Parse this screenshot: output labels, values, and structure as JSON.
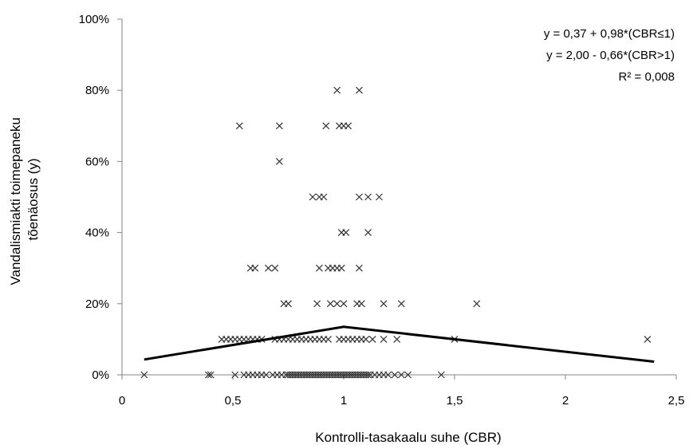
{
  "chart_data": {
    "type": "scatter",
    "xlabel": "Kontrolli-tasakaalu suhe (CBR)",
    "ylabel_lines": [
      "Vandalismiakti toimepaneku",
      "tõenäosus (y)"
    ],
    "xlim": [
      0,
      2.5
    ],
    "ylim": [
      0,
      1
    ],
    "x_ticks": [
      {
        "v": 0,
        "label": "0"
      },
      {
        "v": 0.5,
        "label": "0,5"
      },
      {
        "v": 1,
        "label": "1"
      },
      {
        "v": 1.5,
        "label": "1,5"
      },
      {
        "v": 2,
        "label": "2"
      },
      {
        "v": 2.5,
        "label": "2,5"
      }
    ],
    "y_ticks": [
      {
        "v": 0,
        "label": "0%"
      },
      {
        "v": 0.2,
        "label": "20%"
      },
      {
        "v": 0.4,
        "label": "40%"
      },
      {
        "v": 0.6,
        "label": "60%"
      },
      {
        "v": 0.8,
        "label": "80%"
      },
      {
        "v": 1.0,
        "label": "100%"
      }
    ],
    "grid": false,
    "marker": "x",
    "annotations": [
      "y = 0,37 + 0,98*(CBR≤1)",
      "y = 2,00 - 0,66*(CBR>1)",
      "R² = 0,008"
    ],
    "fit_line": {
      "points": [
        {
          "x": 0.1,
          "y": 0.043
        },
        {
          "x": 1.0,
          "y": 0.135
        },
        {
          "x": 2.4,
          "y": 0.037
        }
      ]
    },
    "series": [
      {
        "points": [
          {
            "x": 0.1,
            "y": 0.0
          },
          {
            "x": 0.39,
            "y": 0.0
          },
          {
            "x": 0.4,
            "y": 0.0
          },
          {
            "x": 0.51,
            "y": 0.0
          },
          {
            "x": 0.55,
            "y": 0.0
          },
          {
            "x": 0.57,
            "y": 0.0
          },
          {
            "x": 0.59,
            "y": 0.0
          },
          {
            "x": 0.61,
            "y": 0.0
          },
          {
            "x": 0.63,
            "y": 0.0
          },
          {
            "x": 0.65,
            "y": 0.0
          },
          {
            "x": 0.68,
            "y": 0.0
          },
          {
            "x": 0.7,
            "y": 0.0
          },
          {
            "x": 0.72,
            "y": 0.0
          },
          {
            "x": 0.74,
            "y": 0.0
          },
          {
            "x": 0.75,
            "y": 0.0
          },
          {
            "x": 0.76,
            "y": 0.0
          },
          {
            "x": 0.77,
            "y": 0.0
          },
          {
            "x": 0.78,
            "y": 0.0
          },
          {
            "x": 0.79,
            "y": 0.0
          },
          {
            "x": 0.8,
            "y": 0.0
          },
          {
            "x": 0.81,
            "y": 0.0
          },
          {
            "x": 0.82,
            "y": 0.0
          },
          {
            "x": 0.83,
            "y": 0.0
          },
          {
            "x": 0.84,
            "y": 0.0
          },
          {
            "x": 0.85,
            "y": 0.0
          },
          {
            "x": 0.86,
            "y": 0.0
          },
          {
            "x": 0.87,
            "y": 0.0
          },
          {
            "x": 0.88,
            "y": 0.0
          },
          {
            "x": 0.89,
            "y": 0.0
          },
          {
            "x": 0.9,
            "y": 0.0
          },
          {
            "x": 0.91,
            "y": 0.0
          },
          {
            "x": 0.92,
            "y": 0.0
          },
          {
            "x": 0.93,
            "y": 0.0
          },
          {
            "x": 0.94,
            "y": 0.0
          },
          {
            "x": 0.95,
            "y": 0.0
          },
          {
            "x": 0.96,
            "y": 0.0
          },
          {
            "x": 0.97,
            "y": 0.0
          },
          {
            "x": 0.98,
            "y": 0.0
          },
          {
            "x": 0.99,
            "y": 0.0
          },
          {
            "x": 1.0,
            "y": 0.0
          },
          {
            "x": 1.01,
            "y": 0.0
          },
          {
            "x": 1.02,
            "y": 0.0
          },
          {
            "x": 1.03,
            "y": 0.0
          },
          {
            "x": 1.04,
            "y": 0.0
          },
          {
            "x": 1.05,
            "y": 0.0
          },
          {
            "x": 1.06,
            "y": 0.0
          },
          {
            "x": 1.07,
            "y": 0.0
          },
          {
            "x": 1.08,
            "y": 0.0
          },
          {
            "x": 1.09,
            "y": 0.0
          },
          {
            "x": 1.1,
            "y": 0.0
          },
          {
            "x": 1.11,
            "y": 0.0
          },
          {
            "x": 1.12,
            "y": 0.0
          },
          {
            "x": 1.14,
            "y": 0.0
          },
          {
            "x": 1.16,
            "y": 0.0
          },
          {
            "x": 1.18,
            "y": 0.0
          },
          {
            "x": 1.2,
            "y": 0.0
          },
          {
            "x": 1.23,
            "y": 0.0
          },
          {
            "x": 1.26,
            "y": 0.0
          },
          {
            "x": 1.29,
            "y": 0.0
          },
          {
            "x": 1.44,
            "y": 0.0
          },
          {
            "x": 0.45,
            "y": 0.1
          },
          {
            "x": 0.47,
            "y": 0.1
          },
          {
            "x": 0.49,
            "y": 0.1
          },
          {
            "x": 0.51,
            "y": 0.1
          },
          {
            "x": 0.53,
            "y": 0.1
          },
          {
            "x": 0.55,
            "y": 0.1
          },
          {
            "x": 0.57,
            "y": 0.1
          },
          {
            "x": 0.59,
            "y": 0.1
          },
          {
            "x": 0.61,
            "y": 0.1
          },
          {
            "x": 0.63,
            "y": 0.1
          },
          {
            "x": 0.69,
            "y": 0.1
          },
          {
            "x": 0.71,
            "y": 0.1
          },
          {
            "x": 0.73,
            "y": 0.1
          },
          {
            "x": 0.75,
            "y": 0.1
          },
          {
            "x": 0.77,
            "y": 0.1
          },
          {
            "x": 0.79,
            "y": 0.1
          },
          {
            "x": 0.81,
            "y": 0.1
          },
          {
            "x": 0.83,
            "y": 0.1
          },
          {
            "x": 0.85,
            "y": 0.1
          },
          {
            "x": 0.87,
            "y": 0.1
          },
          {
            "x": 0.89,
            "y": 0.1
          },
          {
            "x": 0.91,
            "y": 0.1
          },
          {
            "x": 0.93,
            "y": 0.1
          },
          {
            "x": 0.98,
            "y": 0.1
          },
          {
            "x": 1.0,
            "y": 0.1
          },
          {
            "x": 1.02,
            "y": 0.1
          },
          {
            "x": 1.04,
            "y": 0.1
          },
          {
            "x": 1.06,
            "y": 0.1
          },
          {
            "x": 1.08,
            "y": 0.1
          },
          {
            "x": 1.1,
            "y": 0.1
          },
          {
            "x": 1.13,
            "y": 0.1
          },
          {
            "x": 1.18,
            "y": 0.1
          },
          {
            "x": 1.24,
            "y": 0.1
          },
          {
            "x": 1.5,
            "y": 0.1
          },
          {
            "x": 2.37,
            "y": 0.1
          },
          {
            "x": 0.73,
            "y": 0.2
          },
          {
            "x": 0.75,
            "y": 0.2
          },
          {
            "x": 0.88,
            "y": 0.2
          },
          {
            "x": 0.94,
            "y": 0.2
          },
          {
            "x": 0.97,
            "y": 0.2
          },
          {
            "x": 1.0,
            "y": 0.2
          },
          {
            "x": 1.06,
            "y": 0.2
          },
          {
            "x": 1.08,
            "y": 0.2
          },
          {
            "x": 1.18,
            "y": 0.2
          },
          {
            "x": 1.26,
            "y": 0.2
          },
          {
            "x": 1.6,
            "y": 0.2
          },
          {
            "x": 0.58,
            "y": 0.3
          },
          {
            "x": 0.6,
            "y": 0.3
          },
          {
            "x": 0.66,
            "y": 0.3
          },
          {
            "x": 0.69,
            "y": 0.3
          },
          {
            "x": 0.89,
            "y": 0.3
          },
          {
            "x": 0.93,
            "y": 0.3
          },
          {
            "x": 0.95,
            "y": 0.3
          },
          {
            "x": 0.97,
            "y": 0.3
          },
          {
            "x": 0.99,
            "y": 0.3
          },
          {
            "x": 1.07,
            "y": 0.3
          },
          {
            "x": 0.99,
            "y": 0.4
          },
          {
            "x": 1.01,
            "y": 0.4
          },
          {
            "x": 1.11,
            "y": 0.4
          },
          {
            "x": 0.86,
            "y": 0.5
          },
          {
            "x": 0.89,
            "y": 0.5
          },
          {
            "x": 0.91,
            "y": 0.5
          },
          {
            "x": 1.07,
            "y": 0.5
          },
          {
            "x": 1.11,
            "y": 0.5
          },
          {
            "x": 1.16,
            "y": 0.5
          },
          {
            "x": 0.71,
            "y": 0.6
          },
          {
            "x": 0.53,
            "y": 0.7
          },
          {
            "x": 0.71,
            "y": 0.7
          },
          {
            "x": 0.92,
            "y": 0.7
          },
          {
            "x": 0.98,
            "y": 0.7
          },
          {
            "x": 1.0,
            "y": 0.7
          },
          {
            "x": 1.02,
            "y": 0.7
          },
          {
            "x": 0.97,
            "y": 0.8
          },
          {
            "x": 1.07,
            "y": 0.8
          }
        ]
      }
    ]
  }
}
